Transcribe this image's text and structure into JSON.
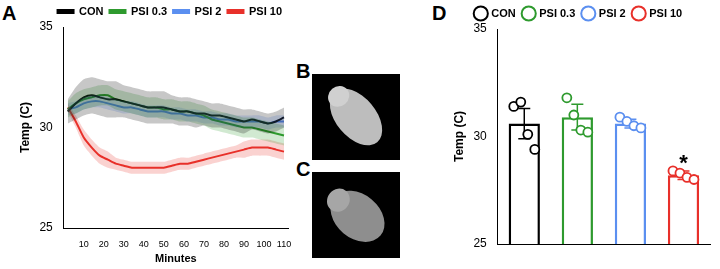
{
  "chart_data": [
    {
      "panel_label": "A",
      "type": "line",
      "x_label": "Minutes",
      "y_label": "Temp (C)",
      "x": [
        2,
        6,
        10,
        14,
        18,
        22,
        26,
        30,
        34,
        38,
        42,
        46,
        50,
        54,
        58,
        62,
        66,
        70,
        74,
        78,
        82,
        86,
        90,
        94,
        98,
        102,
        106,
        110
      ],
      "xlim": [
        0,
        112
      ],
      "xticks": [
        10,
        20,
        30,
        40,
        50,
        60,
        70,
        80,
        90,
        100,
        110
      ],
      "ylim": [
        25,
        35
      ],
      "yticks": [
        25,
        30,
        35
      ],
      "grid": false,
      "legend": "top",
      "series": [
        {
          "name": "CON",
          "color": "#000000",
          "values": [
            30.8,
            31.2,
            31.5,
            31.6,
            31.5,
            31.4,
            31.4,
            31.3,
            31.2,
            31.1,
            31.0,
            31.0,
            31.0,
            30.9,
            30.8,
            30.8,
            30.7,
            30.7,
            30.6,
            30.6,
            30.5,
            30.4,
            30.3,
            30.4,
            30.3,
            30.2,
            30.3,
            30.5
          ],
          "sem": [
            0.6,
            0.8,
            0.9,
            0.9,
            0.9,
            0.9,
            0.9,
            0.8,
            0.8,
            0.8,
            0.8,
            0.8,
            0.8,
            0.7,
            0.7,
            0.7,
            0.7,
            0.6,
            0.6,
            0.6,
            0.6,
            0.6,
            0.6,
            0.5,
            0.5,
            0.5,
            0.5,
            0.5
          ]
        },
        {
          "name": "PSI 0.3",
          "color": "#2e9a2e",
          "values": [
            30.9,
            31.2,
            31.4,
            31.5,
            31.6,
            31.6,
            31.4,
            31.3,
            31.2,
            31.1,
            31.0,
            31.0,
            30.9,
            30.9,
            30.8,
            30.8,
            30.7,
            30.6,
            30.4,
            30.3,
            30.2,
            30.1,
            30.0,
            30.0,
            29.9,
            29.8,
            29.7,
            29.6
          ],
          "sem": [
            0.4,
            0.5,
            0.5,
            0.5,
            0.5,
            0.5,
            0.5,
            0.5,
            0.5,
            0.5,
            0.5,
            0.5,
            0.5,
            0.5,
            0.5,
            0.5,
            0.5,
            0.5,
            0.5,
            0.5,
            0.5,
            0.5,
            0.5,
            0.5,
            0.5,
            0.5,
            0.5,
            0.5
          ]
        },
        {
          "name": "PSI 2",
          "color": "#5b8ff0",
          "values": [
            30.9,
            31.0,
            31.2,
            31.3,
            31.3,
            31.2,
            31.1,
            31.0,
            31.0,
            30.9,
            30.8,
            30.8,
            30.8,
            30.7,
            30.7,
            30.6,
            30.6,
            30.5,
            30.5,
            30.4,
            30.4,
            30.3,
            30.3,
            30.3,
            30.3,
            30.2,
            30.3,
            30.3
          ],
          "sem": [
            0.3,
            0.3,
            0.3,
            0.3,
            0.3,
            0.3,
            0.3,
            0.3,
            0.3,
            0.3,
            0.3,
            0.3,
            0.3,
            0.3,
            0.3,
            0.3,
            0.3,
            0.3,
            0.3,
            0.3,
            0.3,
            0.3,
            0.3,
            0.3,
            0.3,
            0.3,
            0.3,
            0.3
          ]
        },
        {
          "name": "PSI 10",
          "color": "#e8302a",
          "values": [
            31.0,
            30.3,
            29.5,
            29.0,
            28.6,
            28.4,
            28.2,
            28.1,
            28.0,
            28.0,
            28.0,
            28.0,
            28.0,
            28.1,
            28.2,
            28.2,
            28.3,
            28.4,
            28.5,
            28.6,
            28.7,
            28.8,
            28.9,
            29.0,
            29.0,
            29.0,
            28.9,
            28.8
          ],
          "sem": [
            0.2,
            0.3,
            0.4,
            0.4,
            0.4,
            0.4,
            0.3,
            0.3,
            0.3,
            0.3,
            0.3,
            0.3,
            0.3,
            0.3,
            0.3,
            0.3,
            0.3,
            0.3,
            0.3,
            0.3,
            0.3,
            0.3,
            0.4,
            0.4,
            0.4,
            0.4,
            0.4,
            0.4
          ]
        }
      ]
    },
    {
      "panel_label": "D",
      "type": "bar",
      "y_label": "Temp (C)",
      "categories": [
        "CON",
        "PSI 0.3",
        "PSI 2",
        "PSI 10"
      ],
      "values": [
        30.6,
        30.9,
        30.6,
        28.2
      ],
      "error": [
        0.7,
        0.6,
        0.2,
        0.2
      ],
      "points": [
        [
          31.4,
          31.6,
          30.1,
          29.4
        ],
        [
          31.8,
          31.0,
          30.3,
          30.2
        ],
        [
          30.9,
          30.7,
          30.5,
          30.4
        ],
        [
          28.4,
          28.3,
          28.1,
          28.0
        ]
      ],
      "colors": [
        "#000000",
        "#2e9a2e",
        "#5b8ff0",
        "#e8302a"
      ],
      "ylim": [
        25,
        35
      ],
      "yticks": [
        25,
        30,
        35
      ],
      "grid": false,
      "legend": "top",
      "tick_labels": "y",
      "marker": "circle",
      "annotations": [
        {
          "category": "PSI 10",
          "text": "*"
        }
      ]
    }
  ],
  "images": [
    {
      "panel_label": "B"
    },
    {
      "panel_label": "C"
    }
  ]
}
